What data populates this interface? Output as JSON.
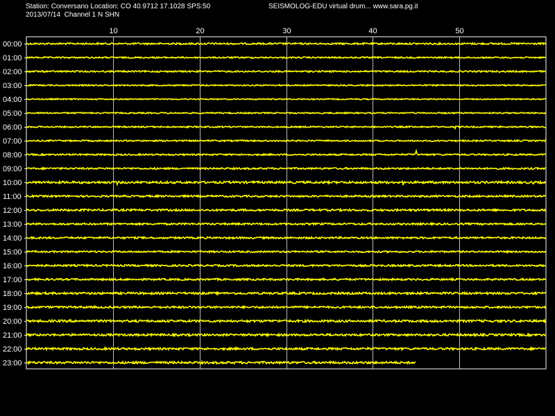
{
  "header": {
    "station_line": "Station: Conversano Location: CO 40.9712 17.1028 SPS:50",
    "date_line": "2013/07/14  Channel 1 N SHN",
    "app_line": "SEISMOLOG-EDU virtual drum... www.sara.pg.it"
  },
  "colors": {
    "background": "#000000",
    "trace": "#ffff00",
    "grid": "#ffffff",
    "text": "#ffffff"
  },
  "chart_data": {
    "type": "line",
    "title": "",
    "xlabel": "",
    "ylabel": "",
    "x_range": [
      0,
      60
    ],
    "x_ticks": [
      10,
      20,
      30,
      40,
      50
    ],
    "grid": true,
    "rows": [
      {
        "label": "00:00",
        "end_minute": 60,
        "noise": 1.2,
        "events": []
      },
      {
        "label": "01:00",
        "end_minute": 60,
        "noise": 1.0,
        "events": []
      },
      {
        "label": "02:00",
        "end_minute": 60,
        "noise": 1.1,
        "events": []
      },
      {
        "label": "03:00",
        "end_minute": 60,
        "noise": 0.9,
        "events": []
      },
      {
        "label": "04:00",
        "end_minute": 60,
        "noise": 0.8,
        "events": []
      },
      {
        "label": "05:00",
        "end_minute": 60,
        "noise": 0.9,
        "events": []
      },
      {
        "label": "06:00",
        "end_minute": 60,
        "noise": 1.0,
        "events": [
          {
            "minute": 49.5,
            "amp": 3
          }
        ]
      },
      {
        "label": "07:00",
        "end_minute": 60,
        "noise": 1.0,
        "events": []
      },
      {
        "label": "08:00",
        "end_minute": 60,
        "noise": 1.1,
        "events": [
          {
            "minute": 45,
            "amp": 7
          }
        ]
      },
      {
        "label": "09:00",
        "end_minute": 60,
        "noise": 1.2,
        "events": []
      },
      {
        "label": "10:00",
        "end_minute": 60,
        "noise": 1.6,
        "events": [
          {
            "minute": 10.5,
            "amp": 3
          },
          {
            "minute": 16,
            "amp": 4
          },
          {
            "minute": 43.5,
            "amp": 5
          },
          {
            "minute": 58.5,
            "amp": 3
          }
        ]
      },
      {
        "label": "11:00",
        "end_minute": 60,
        "noise": 1.3,
        "events": []
      },
      {
        "label": "12:00",
        "end_minute": 60,
        "noise": 1.4,
        "events": []
      },
      {
        "label": "13:00",
        "end_minute": 60,
        "noise": 1.3,
        "events": []
      },
      {
        "label": "14:00",
        "end_minute": 60,
        "noise": 1.3,
        "events": []
      },
      {
        "label": "15:00",
        "end_minute": 60,
        "noise": 1.2,
        "events": []
      },
      {
        "label": "16:00",
        "end_minute": 60,
        "noise": 1.3,
        "events": []
      },
      {
        "label": "17:00",
        "end_minute": 60,
        "noise": 1.3,
        "events": []
      },
      {
        "label": "18:00",
        "end_minute": 60,
        "noise": 1.5,
        "events": []
      },
      {
        "label": "19:00",
        "end_minute": 60,
        "noise": 1.4,
        "events": []
      },
      {
        "label": "20:00",
        "end_minute": 60,
        "noise": 1.6,
        "events": []
      },
      {
        "label": "21:00",
        "end_minute": 60,
        "noise": 1.5,
        "events": []
      },
      {
        "label": "22:00",
        "end_minute": 60,
        "noise": 1.5,
        "events": []
      },
      {
        "label": "23:00",
        "end_minute": 45,
        "noise": 1.6,
        "events": []
      }
    ]
  }
}
